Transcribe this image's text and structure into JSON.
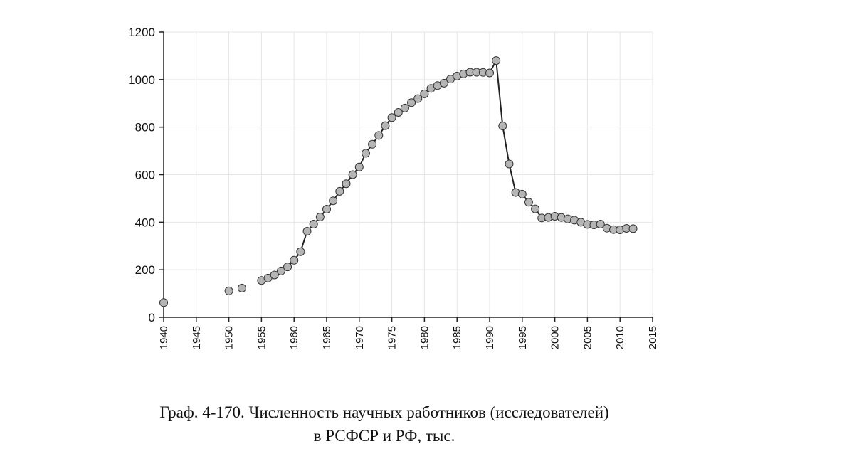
{
  "chart_data": {
    "type": "line",
    "title": "",
    "xlabel": "",
    "ylabel": "",
    "xlim": [
      1940,
      2015
    ],
    "ylim": [
      0,
      1200
    ],
    "x_ticks": [
      "1940",
      "1945",
      "1950",
      "1955",
      "1960",
      "1965",
      "1970",
      "1975",
      "1980",
      "1985",
      "1990",
      "1995",
      "2000",
      "2005",
      "2010",
      "2015"
    ],
    "y_ticks": [
      "0",
      "200",
      "400",
      "600",
      "800",
      "1000",
      "1200"
    ],
    "grid": true,
    "series": [
      {
        "name": "",
        "color": "#222222",
        "marker_color": "#b5b5b5",
        "isolated_points": [
          [
            1940,
            62
          ],
          [
            1950,
            111
          ],
          [
            1952,
            123
          ]
        ],
        "points": [
          [
            1955,
            155
          ],
          [
            1956,
            165
          ],
          [
            1957,
            178
          ],
          [
            1958,
            195
          ],
          [
            1959,
            212
          ],
          [
            1960,
            240
          ],
          [
            1961,
            276
          ],
          [
            1962,
            362
          ],
          [
            1963,
            392
          ],
          [
            1964,
            422
          ],
          [
            1965,
            455
          ],
          [
            1966,
            490
          ],
          [
            1967,
            530
          ],
          [
            1968,
            562
          ],
          [
            1969,
            600
          ],
          [
            1970,
            632
          ],
          [
            1971,
            690
          ],
          [
            1972,
            728
          ],
          [
            1973,
            765
          ],
          [
            1974,
            806
          ],
          [
            1975,
            840
          ],
          [
            1976,
            862
          ],
          [
            1977,
            880
          ],
          [
            1978,
            903
          ],
          [
            1979,
            920
          ],
          [
            1980,
            940
          ],
          [
            1981,
            963
          ],
          [
            1982,
            975
          ],
          [
            1983,
            985
          ],
          [
            1984,
            1002
          ],
          [
            1985,
            1015
          ],
          [
            1986,
            1024
          ],
          [
            1987,
            1031
          ],
          [
            1988,
            1031
          ],
          [
            1989,
            1030
          ],
          [
            1990,
            1028
          ],
          [
            1991,
            1080
          ],
          [
            1992,
            805
          ],
          [
            1993,
            645
          ],
          [
            1994,
            525
          ],
          [
            1995,
            518
          ],
          [
            1996,
            484
          ],
          [
            1997,
            456
          ],
          [
            1998,
            418
          ],
          [
            1999,
            420
          ],
          [
            2000,
            425
          ],
          [
            2001,
            420
          ],
          [
            2002,
            414
          ],
          [
            2003,
            409
          ],
          [
            2004,
            400
          ],
          [
            2005,
            391
          ],
          [
            2006,
            389
          ],
          [
            2007,
            392
          ],
          [
            2008,
            375
          ],
          [
            2009,
            369
          ],
          [
            2010,
            368
          ],
          [
            2011,
            374
          ],
          [
            2012,
            373
          ]
        ]
      }
    ]
  },
  "caption": {
    "line1": "Граф. 4-170. Численность научных работников (исследователей)",
    "line2": "в РСФСР и РФ, тыс."
  }
}
